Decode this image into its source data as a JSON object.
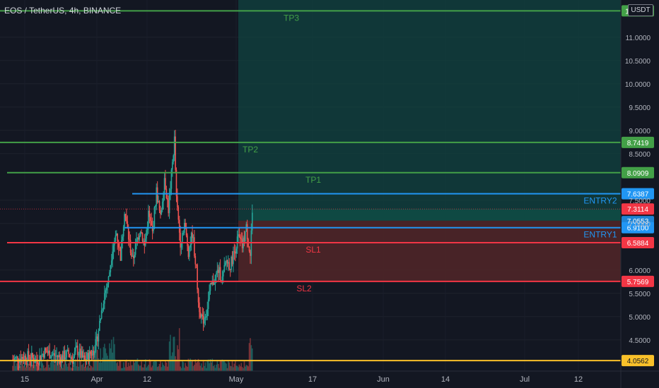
{
  "header": {
    "symbol_title": "EOS / TetherUS, 4h, BINANCE",
    "currency": "USDT"
  },
  "colors": {
    "background": "#131722",
    "profit_zone": "#0f4c45",
    "loss_zone": "#5b1e22",
    "green": "#43a047",
    "blue": "#2196f3",
    "red": "#f23645",
    "yellow": "#f9c12a",
    "axis_text": "#b2b5be",
    "candle_up": "#26a69a",
    "candle_down": "#ef5350"
  },
  "chart_data": {
    "type": "candlestick",
    "x_ticks": [
      "15",
      "Apr",
      "12",
      "May",
      "17",
      "Jun",
      "14",
      "Jul",
      "12"
    ],
    "y_ticks": [
      "11.0000",
      "10.5000",
      "10.0000",
      "9.5000",
      "9.0000",
      "8.5000",
      "7.5000",
      "7.0000",
      "6.0000",
      "5.5000",
      "5.0000",
      "4.5000"
    ],
    "ylim": [
      3.83,
      11.8
    ],
    "levels": [
      {
        "name": "TP3",
        "value": 11.5674,
        "label": "11.5674",
        "color": "#43a047",
        "start_day": 0
      },
      {
        "name": "TP2",
        "value": 8.7419,
        "label": "8.7419",
        "color": "#43a047",
        "start_day": 0
      },
      {
        "name": "TP1",
        "value": 8.0909,
        "label": "8.0909",
        "color": "#43a047",
        "start_day": 3
      },
      {
        "name": "ENTRY2",
        "value": 7.6387,
        "label": "7.6387",
        "color": "#2196f3",
        "start_day": 61
      },
      {
        "name": "ENTRY1",
        "value": 6.91,
        "label": "6.9100",
        "color": "#2196f3",
        "start_day": 57
      },
      {
        "name": "SL1",
        "value": 6.5884,
        "label": "6.5884",
        "color": "#f23645",
        "start_day": 3
      },
      {
        "name": "SL2",
        "value": 5.7569,
        "label": "5.7569",
        "color": "#f23645",
        "start_day": 0
      },
      {
        "name": "",
        "value": 4.0562,
        "label": "4.0562",
        "color": "#f9c12a",
        "start_day": 0
      }
    ],
    "current_price": {
      "value": 7.3114,
      "label": "7.3114"
    },
    "partial_label": {
      "value": 7.0553,
      "label": "7.0553"
    },
    "position_zones": [
      {
        "type": "profit",
        "from_day": 113,
        "to_day": 300,
        "y_from": 5.7569,
        "y_to": 11.8
      },
      {
        "type": "profit",
        "from_day": 120,
        "to_day": 300,
        "y_from": 7.06,
        "y_to": 7.31
      },
      {
        "type": "loss",
        "from_day": 113,
        "to_day": 300,
        "y_from": 5.7569,
        "y_to": 7.06
      }
    ],
    "price_path": [
      [
        0,
        4.08
      ],
      [
        4,
        4.12
      ],
      [
        8,
        4.15
      ],
      [
        12,
        4.05
      ],
      [
        16,
        4.25
      ],
      [
        20,
        4.18
      ],
      [
        24,
        4.12
      ],
      [
        28,
        4.2
      ],
      [
        30,
        4.08
      ],
      [
        32,
        4.3
      ],
      [
        36,
        4.05
      ],
      [
        40,
        4.25
      ],
      [
        42,
        4.45
      ],
      [
        44,
        5.0
      ],
      [
        46,
        5.5
      ],
      [
        48,
        5.8
      ],
      [
        50,
        6.5
      ],
      [
        52,
        6.8
      ],
      [
        54,
        6.3
      ],
      [
        56,
        7.3
      ],
      [
        58,
        6.7
      ],
      [
        60,
        6.2
      ],
      [
        62,
        6.6
      ],
      [
        64,
        6.9
      ],
      [
        66,
        6.5
      ],
      [
        68,
        7.2
      ],
      [
        70,
        6.8
      ],
      [
        72,
        7.7
      ],
      [
        74,
        7.1
      ],
      [
        76,
        8.0
      ],
      [
        78,
        7.3
      ],
      [
        80,
        8.3
      ],
      [
        81,
        8.8
      ],
      [
        82,
        7.5
      ],
      [
        84,
        6.6
      ],
      [
        86,
        7.0
      ],
      [
        88,
        6.4
      ],
      [
        90,
        6.8
      ],
      [
        92,
        6.0
      ],
      [
        93,
        5.3
      ],
      [
        95,
        4.9
      ],
      [
        97,
        5.1
      ],
      [
        99,
        5.6
      ],
      [
        101,
        5.8
      ],
      [
        103,
        6.0
      ],
      [
        105,
        5.8
      ],
      [
        107,
        6.2
      ],
      [
        109,
        6.1
      ],
      [
        111,
        6.4
      ],
      [
        113,
        6.7
      ],
      [
        115,
        6.5
      ],
      [
        117,
        6.9
      ],
      [
        119,
        6.3
      ],
      [
        120,
        7.3
      ]
    ]
  }
}
